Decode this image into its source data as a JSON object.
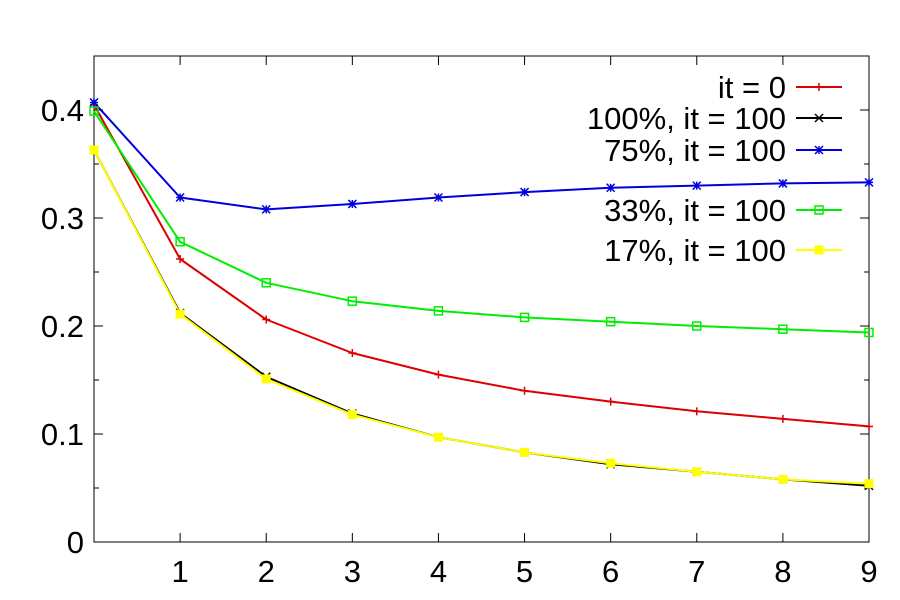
{
  "chart_data": {
    "type": "line",
    "title": "",
    "xlabel": "",
    "ylabel": "",
    "xlim": [
      0,
      9
    ],
    "ylim": [
      0,
      0.45
    ],
    "x_ticks": [
      1,
      2,
      3,
      4,
      5,
      6,
      7,
      8,
      9
    ],
    "y_ticks": [
      0,
      0.1,
      0.2,
      0.3,
      0.4
    ],
    "y_tick_labels": [
      "0",
      "0.1",
      "0.2",
      "0.3",
      "0.4"
    ],
    "grid": false,
    "legend_position": "top-right",
    "x": [
      0,
      1,
      2,
      3,
      4,
      5,
      6,
      7,
      8,
      9
    ],
    "series": [
      {
        "name": "it = 0",
        "color": "#dd0000",
        "marker": "plus",
        "values": [
          0.405,
          0.262,
          0.206,
          0.175,
          0.155,
          0.14,
          0.13,
          0.121,
          0.114,
          0.107
        ]
      },
      {
        "name": "100%, it = 100",
        "color": "#000000",
        "marker": "cross",
        "values": [
          0.363,
          0.212,
          0.153,
          0.119,
          0.097,
          0.083,
          0.072,
          0.065,
          0.058,
          0.052
        ]
      },
      {
        "name": "75%, it = 100",
        "color": "#0000dd",
        "marker": "star",
        "values": [
          0.407,
          0.319,
          0.308,
          0.313,
          0.319,
          0.324,
          0.328,
          0.33,
          0.332,
          0.333
        ]
      },
      {
        "name": "33%, it = 100",
        "color": "#00ee00",
        "marker": "square",
        "values": [
          0.399,
          0.278,
          0.24,
          0.223,
          0.214,
          0.208,
          0.204,
          0.2,
          0.197,
          0.194
        ]
      },
      {
        "name": "17%, it = 100",
        "color": "#ffff00",
        "marker": "filled-square",
        "values": [
          0.363,
          0.211,
          0.151,
          0.118,
          0.097,
          0.083,
          0.073,
          0.065,
          0.058,
          0.054
        ]
      }
    ]
  }
}
